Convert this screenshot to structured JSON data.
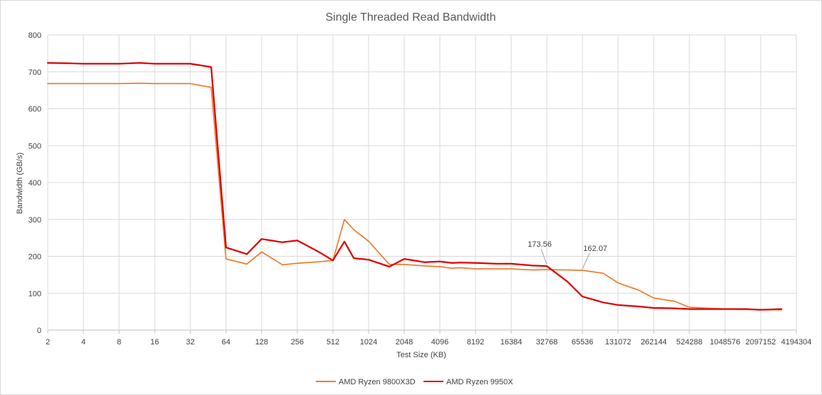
{
  "chart_data": {
    "type": "line",
    "title": "Single Threaded Read Bandwidth",
    "xlabel": "Test Size (KB)",
    "ylabel": "Bandwidth (GB/s)",
    "x_scale": "log2",
    "xlim": [
      2,
      4194304
    ],
    "ylim": [
      0,
      800
    ],
    "yticks": [
      0,
      100,
      200,
      300,
      400,
      500,
      600,
      700,
      800
    ],
    "xticks": [
      2,
      4,
      8,
      16,
      32,
      64,
      128,
      256,
      512,
      1024,
      2048,
      4096,
      8192,
      16384,
      32768,
      65536,
      131072,
      262144,
      524288,
      1048576,
      2097152,
      4194304
    ],
    "xtick_labels": [
      "2",
      "4",
      "8",
      "16",
      "32",
      "64",
      "128",
      "256",
      "512",
      "1024",
      "2048",
      "4096",
      "8192",
      "16384",
      "32768",
      "65536",
      "131072",
      "262144",
      "524288",
      "1048576",
      "2097152",
      "4194304"
    ],
    "grid": true,
    "legend_position": "bottom",
    "series": [
      {
        "name": "AMD Ryzen 9800X3D",
        "color": "#ED7D31",
        "points": [
          [
            2,
            668
          ],
          [
            3,
            668
          ],
          [
            4,
            668
          ],
          [
            6,
            668
          ],
          [
            8,
            668
          ],
          [
            12,
            669
          ],
          [
            16,
            668
          ],
          [
            24,
            668
          ],
          [
            32,
            668
          ],
          [
            48,
            658
          ],
          [
            64,
            193
          ],
          [
            96,
            179
          ],
          [
            128,
            212
          ],
          [
            192,
            177
          ],
          [
            256,
            181
          ],
          [
            384,
            185
          ],
          [
            512,
            189
          ],
          [
            640,
            300
          ],
          [
            768,
            272
          ],
          [
            1024,
            241
          ],
          [
            1536,
            178
          ],
          [
            2048,
            178
          ],
          [
            3072,
            174
          ],
          [
            4096,
            172
          ],
          [
            5120,
            168
          ],
          [
            6144,
            169
          ],
          [
            8192,
            166
          ],
          [
            12288,
            166
          ],
          [
            16384,
            166
          ],
          [
            24576,
            163
          ],
          [
            32768,
            164
          ],
          [
            49152,
            163
          ],
          [
            65536,
            162.07
          ],
          [
            98304,
            154
          ],
          [
            131072,
            128
          ],
          [
            196608,
            108
          ],
          [
            262144,
            87
          ],
          [
            393216,
            78
          ],
          [
            524288,
            62
          ],
          [
            786432,
            59
          ],
          [
            1048576,
            57
          ],
          [
            1572864,
            56
          ],
          [
            2097152,
            55
          ],
          [
            3145728,
            55
          ]
        ]
      },
      {
        "name": "AMD Ryzen 9950X",
        "color": "#E00000",
        "points": [
          [
            2,
            724
          ],
          [
            3,
            723
          ],
          [
            4,
            722
          ],
          [
            6,
            722
          ],
          [
            8,
            722
          ],
          [
            12,
            724
          ],
          [
            16,
            722
          ],
          [
            24,
            722
          ],
          [
            32,
            722
          ],
          [
            48,
            713
          ],
          [
            64,
            224
          ],
          [
            96,
            206
          ],
          [
            128,
            247
          ],
          [
            192,
            238
          ],
          [
            256,
            243
          ],
          [
            384,
            213
          ],
          [
            512,
            189
          ],
          [
            640,
            240
          ],
          [
            768,
            195
          ],
          [
            1024,
            191
          ],
          [
            1536,
            172
          ],
          [
            2048,
            193
          ],
          [
            3072,
            184
          ],
          [
            4096,
            186
          ],
          [
            5120,
            182
          ],
          [
            6144,
            183
          ],
          [
            8192,
            182
          ],
          [
            12288,
            180
          ],
          [
            16384,
            180
          ],
          [
            24576,
            175
          ],
          [
            32768,
            173.56
          ],
          [
            49152,
            131
          ],
          [
            65536,
            91
          ],
          [
            98304,
            75
          ],
          [
            131072,
            68
          ],
          [
            196608,
            64
          ],
          [
            262144,
            60
          ],
          [
            393216,
            59
          ],
          [
            524288,
            57
          ],
          [
            786432,
            57
          ],
          [
            1048576,
            57
          ],
          [
            1572864,
            57
          ],
          [
            2097152,
            55
          ],
          [
            3145728,
            57
          ]
        ]
      }
    ],
    "annotations": [
      {
        "text": "173.56",
        "x": 32768,
        "y": 173.56
      },
      {
        "text": "162.07",
        "x": 65536,
        "y": 162.07
      }
    ]
  }
}
